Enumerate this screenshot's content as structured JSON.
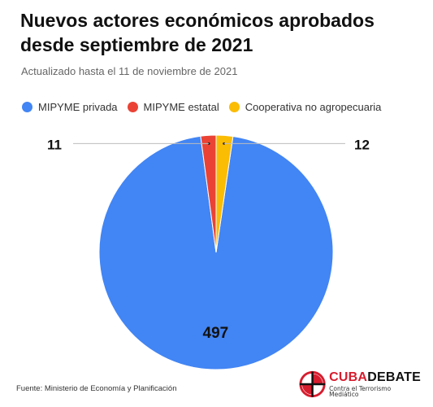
{
  "title": "Nuevos actores económicos aprobados desde septiembre de 2021",
  "subtitle": "Actualizado hasta el 11 de noviembre de 2021",
  "source": "Fuente: Ministerio de Economía y Planificación",
  "logo": {
    "name_part1": "CUBA",
    "name_part2": "DEBATE",
    "tagline": "Contra el Terrorismo Mediático",
    "colors": {
      "primary": "#d61d2e",
      "secondary": "#111111"
    }
  },
  "chart_data": {
    "type": "pie",
    "title": "Nuevos actores económicos aprobados desde septiembre de 2021",
    "subtitle": "Actualizado hasta el 11 de noviembre de 2021",
    "legend_position": "top",
    "slices": [
      {
        "label": "MIPYME privada",
        "value": 497,
        "color": "#4285f4"
      },
      {
        "label": "MIPYME estatal",
        "value": 11,
        "color": "#ea4335"
      },
      {
        "label": "Cooperativa no agropecuaria",
        "value": 12,
        "color": "#fbbc04"
      }
    ],
    "data_labels": [
      "497",
      "11",
      "12"
    ]
  }
}
